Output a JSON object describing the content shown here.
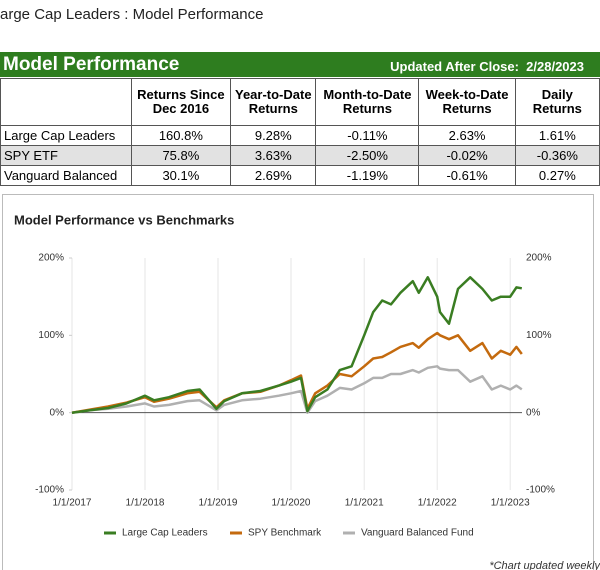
{
  "header": {
    "title": "arge Cap Leaders : Model Performance"
  },
  "banner": {
    "title": "Model Performance",
    "updated": "Updated After Close:  2/28/2023"
  },
  "table": {
    "columns": [
      "",
      "Returns Since Dec 2016",
      "Year-to-Date Returns",
      "Month-to-Date Returns",
      "Week-to-Date Returns",
      "Daily Returns"
    ],
    "rows": [
      [
        "Large Cap Leaders",
        "160.8%",
        "9.28%",
        "-0.11%",
        "2.63%",
        "1.61%"
      ],
      [
        "SPY ETF",
        "75.8%",
        "3.63%",
        "-2.50%",
        "-0.02%",
        "-0.36%"
      ],
      [
        "Vanguard Balanced",
        "30.1%",
        "2.69%",
        "-1.19%",
        "-0.61%",
        "0.27%"
      ]
    ]
  },
  "chart_data": {
    "type": "line",
    "title": "Model Performance vs Benchmarks",
    "x": [
      "2017-01-01",
      "2017-04-01",
      "2017-07-01",
      "2017-10-01",
      "2018-01-01",
      "2018-02-15",
      "2018-05-01",
      "2018-08-01",
      "2018-10-01",
      "2018-12-24",
      "2019-02-01",
      "2019-05-01",
      "2019-08-01",
      "2019-11-01",
      "2020-01-01",
      "2020-02-20",
      "2020-03-23",
      "2020-05-01",
      "2020-07-01",
      "2020-09-01",
      "2020-10-30",
      "2021-01-01",
      "2021-02-15",
      "2021-04-01",
      "2021-05-15",
      "2021-07-01",
      "2021-09-01",
      "2021-10-01",
      "2021-11-15",
      "2022-01-01",
      "2022-01-15",
      "2022-03-01",
      "2022-04-15",
      "2022-06-15",
      "2022-08-15",
      "2022-10-01",
      "2022-11-15",
      "2023-01-01",
      "2023-02-01",
      "2023-02-28"
    ],
    "series": [
      {
        "name": "Large Cap Leaders",
        "color": "#3a7d22",
        "values": [
          0,
          3,
          6,
          12,
          22,
          16,
          20,
          28,
          30,
          5,
          15,
          25,
          28,
          35,
          40,
          45,
          2,
          20,
          30,
          55,
          60,
          100,
          130,
          145,
          140,
          155,
          170,
          155,
          175,
          150,
          130,
          115,
          160,
          175,
          160,
          145,
          150,
          150,
          162,
          160.8
        ]
      },
      {
        "name": "SPY Benchmark",
        "color": "#c46a0e",
        "values": [
          0,
          4,
          8,
          13,
          20,
          14,
          18,
          25,
          27,
          7,
          16,
          25,
          27,
          35,
          42,
          48,
          5,
          25,
          35,
          50,
          47,
          60,
          70,
          72,
          78,
          85,
          90,
          84,
          95,
          103,
          100,
          95,
          100,
          80,
          90,
          70,
          80,
          75,
          85,
          75.8
        ]
      },
      {
        "name": "Vanguard Balanced Fund",
        "color": "#b0b0b0",
        "values": [
          0,
          3,
          5,
          8,
          12,
          8,
          10,
          15,
          16,
          3,
          10,
          16,
          18,
          22,
          25,
          28,
          0,
          15,
          22,
          32,
          30,
          38,
          45,
          45,
          50,
          50,
          55,
          52,
          58,
          60,
          57,
          55,
          55,
          40,
          47,
          30,
          35,
          30,
          35,
          30.1
        ]
      }
    ],
    "xlim": [
      "2017-01-01",
      "2023-03-01"
    ],
    "xticks": [
      {
        "value": "2017-01-01",
        "label": "1/1/2017"
      },
      {
        "value": "2018-01-01",
        "label": "1/1/2018"
      },
      {
        "value": "2019-01-01",
        "label": "1/1/2019"
      },
      {
        "value": "2020-01-01",
        "label": "1/1/2020"
      },
      {
        "value": "2021-01-01",
        "label": "1/1/2021"
      },
      {
        "value": "2022-01-01",
        "label": "1/1/2022"
      },
      {
        "value": "2023-01-01",
        "label": "1/1/2023"
      }
    ],
    "ylim": [
      -100,
      200
    ],
    "yticks": [
      {
        "value": -100,
        "label": "-100%"
      },
      {
        "value": 0,
        "label": "0%"
      },
      {
        "value": 100,
        "label": "100%"
      },
      {
        "value": 200,
        "label": "200%"
      }
    ],
    "grid": "x"
  },
  "footnote": "*Chart updated weekly"
}
